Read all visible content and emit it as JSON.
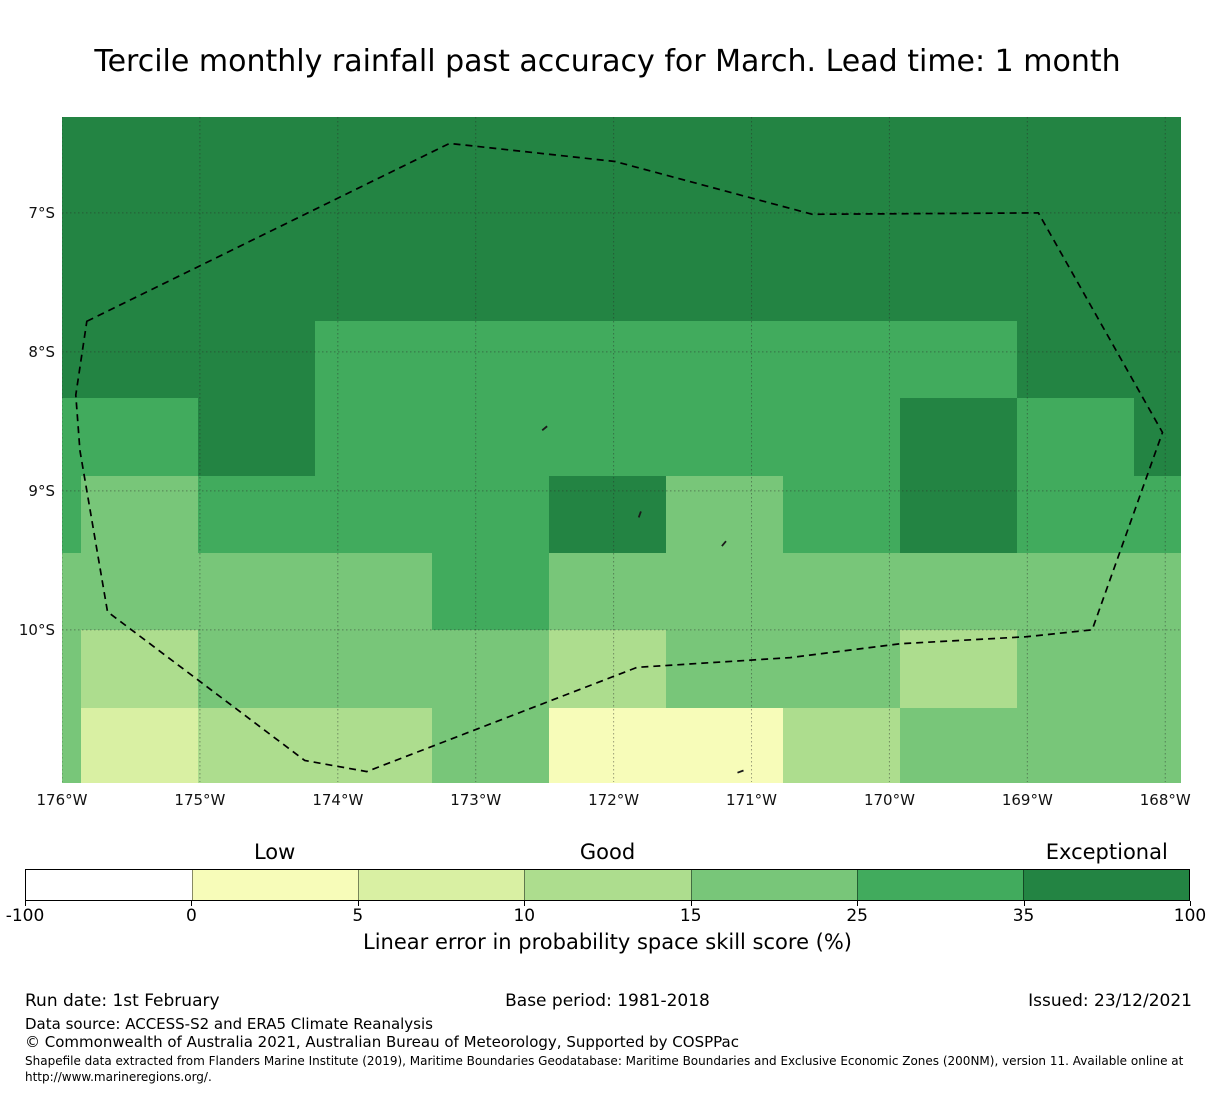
{
  "title": "Tercile monthly rainfall past accuracy for March. Lead time: 1 month",
  "chart_data": {
    "type": "heatmap",
    "title": "Tercile monthly rainfall past accuracy for March. Lead time: 1 month",
    "axes": {
      "lon_left_deg_w": 176.0,
      "lon_right_deg_w": 167.893,
      "lat_top_deg_s": 6.31,
      "lat_bottom_deg_s": 11.095,
      "grid_on": true
    },
    "x_ticks": [
      {
        "value": 176,
        "label": "176°W"
      },
      {
        "value": 175,
        "label": "175°W"
      },
      {
        "value": 174,
        "label": "174°W"
      },
      {
        "value": 173,
        "label": "173°W"
      },
      {
        "value": 172,
        "label": "172°W"
      },
      {
        "value": 171,
        "label": "171°W"
      },
      {
        "value": 170,
        "label": "170°W"
      },
      {
        "value": 169,
        "label": "169°W"
      },
      {
        "value": 168,
        "label": "168°W"
      }
    ],
    "y_ticks": [
      {
        "value": 7,
        "label": "7°S"
      },
      {
        "value": 8,
        "label": "8°S"
      },
      {
        "value": 9,
        "label": "9°S"
      },
      {
        "value": 10,
        "label": "10°S"
      }
    ],
    "classes": [
      {
        "bin": "-100 to 0",
        "color": "#ffffff"
      },
      {
        "bin": "0 to 5",
        "color": "#f7fcb9"
      },
      {
        "bin": "5 to 10",
        "color": "#d9f0a3"
      },
      {
        "bin": "10 to 15",
        "color": "#addd8e"
      },
      {
        "bin": "15 to 25",
        "color": "#78c679"
      },
      {
        "bin": "25 to 35",
        "color": "#41ab5d"
      },
      {
        "bin": "35 to 100",
        "color": "#238443"
      }
    ],
    "lon_edges_deg_w": [
      176.0,
      175.862,
      175.014,
      174.166,
      173.318,
      172.47,
      171.622,
      170.774,
      169.926,
      169.078,
      168.23,
      167.893
    ],
    "lat_edges_deg_s": [
      6.31,
      6.66,
      7.217,
      7.775,
      8.332,
      8.89,
      9.447,
      10.004,
      10.562,
      11.095
    ],
    "grid_class_values": [
      [
        6,
        6,
        6,
        6,
        6,
        6,
        6,
        6,
        6,
        6,
        6
      ],
      [
        6,
        6,
        6,
        6,
        6,
        6,
        6,
        6,
        6,
        6,
        6
      ],
      [
        6,
        6,
        6,
        6,
        6,
        6,
        6,
        6,
        6,
        6,
        6
      ],
      [
        6,
        6,
        6,
        5,
        5,
        5,
        5,
        5,
        5,
        6,
        6
      ],
      [
        5,
        5,
        6,
        5,
        5,
        5,
        5,
        5,
        6,
        5,
        6
      ],
      [
        5,
        4,
        5,
        5,
        5,
        6,
        4,
        5,
        6,
        5,
        5
      ],
      [
        4,
        4,
        4,
        4,
        5,
        4,
        4,
        4,
        4,
        4,
        4
      ],
      [
        4,
        3,
        4,
        4,
        4,
        3,
        4,
        4,
        3,
        4,
        4
      ],
      [
        4,
        2,
        3,
        3,
        4,
        1,
        1,
        3,
        4,
        4,
        4
      ]
    ],
    "eez_boundary_deg": [
      [
        175.82,
        7.78
      ],
      [
        173.19,
        6.5
      ],
      [
        171.99,
        6.63
      ],
      [
        170.56,
        7.01
      ],
      [
        168.92,
        7.0
      ],
      [
        168.02,
        8.58
      ],
      [
        168.53,
        10.0
      ],
      [
        169.01,
        10.05
      ],
      [
        169.92,
        10.1
      ],
      [
        170.72,
        10.2
      ],
      [
        171.83,
        10.27
      ],
      [
        173.79,
        11.02
      ],
      [
        174.24,
        10.94
      ],
      [
        175.67,
        9.87
      ],
      [
        175.87,
        8.71
      ],
      [
        175.9,
        8.31
      ]
    ],
    "islands_deg": [
      {
        "lon": 172.5,
        "lat": 8.55,
        "angle": -40
      },
      {
        "lon": 171.81,
        "lat": 9.17,
        "angle": -70
      },
      {
        "lon": 171.2,
        "lat": 9.38,
        "angle": -50
      },
      {
        "lon": 171.08,
        "lat": 11.02,
        "angle": -20
      }
    ],
    "legend_position": "bottom"
  },
  "colorbar": {
    "tick_values": [
      "-100",
      "0",
      "5",
      "10",
      "15",
      "25",
      "35",
      "100"
    ],
    "categories": [
      {
        "label": "Low",
        "segment_index": 1
      },
      {
        "label": "Good",
        "segment_index": 3
      },
      {
        "label": "Exceptional",
        "segment_index": 6
      }
    ],
    "axis_label": "Linear error in probability space skill score (%)"
  },
  "footer": {
    "run_date": "Run date: 1st February",
    "base_period": "Base period: 1981-2018",
    "issued": "Issued: 23/12/2021",
    "data_source": "Data source: ACCESS-S2 and ERA5 Climate Reanalysis",
    "copyright": "© Commonwealth of Australia 2021, Australian Bureau of Meteorology, Supported by COSPPac",
    "shapefile_note": "Shapefile data extracted from Flanders Marine Institute (2019), Maritime Boundaries Geodatabase: Maritime Boundaries and Exclusive Economic Zones (200NM), version 11. Available online at http://www.marineregions.org/."
  }
}
